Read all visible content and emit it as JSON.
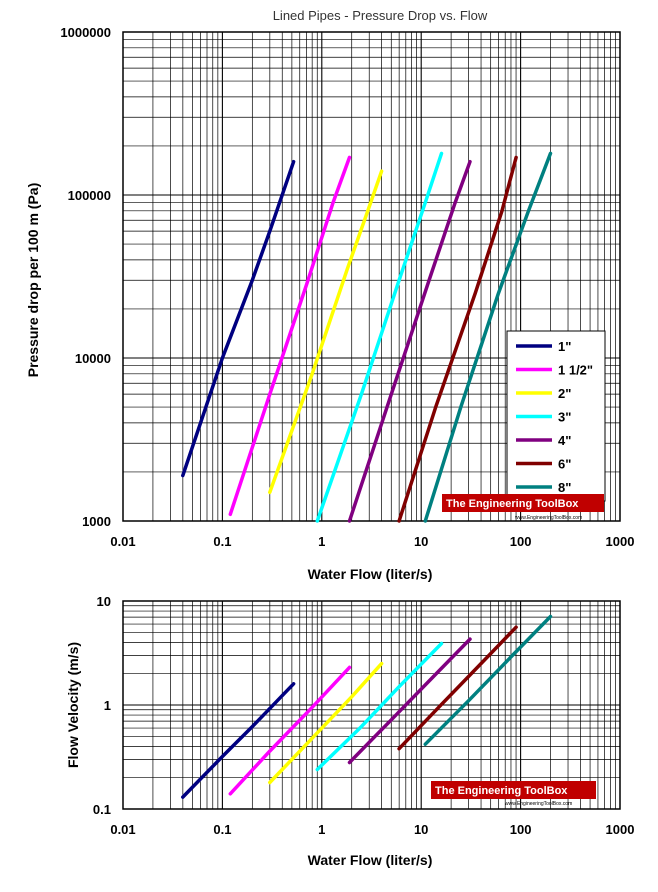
{
  "chart_data": [
    {
      "type": "line",
      "title": "Lined Pipes - Pressure Drop vs. Flow",
      "xlabel": "Water Flow (liter/s)",
      "ylabel": "Pressure drop per 100 m (Pa)",
      "xscale": "log",
      "yscale": "log",
      "xlim": [
        0.01,
        1000
      ],
      "ylim": [
        1000,
        1000000
      ],
      "grid": true,
      "legend_position": "bottom-right",
      "x_ticks": [
        {
          "v": 0.01,
          "label": "0.01"
        },
        {
          "v": 0.1,
          "label": "0.1"
        },
        {
          "v": 1,
          "label": "1"
        },
        {
          "v": 10,
          "label": "10"
        },
        {
          "v": 100,
          "label": "100"
        },
        {
          "v": 1000,
          "label": "1000"
        }
      ],
      "y_ticks": [
        {
          "v": 1000,
          "label": "1000"
        },
        {
          "v": 10000,
          "label": "10000"
        },
        {
          "v": 100000,
          "label": "100000"
        },
        {
          "v": 1000000,
          "label": "1000000"
        }
      ],
      "series": [
        {
          "name": "1\"",
          "color": "#000080",
          "points": [
            [
              0.04,
              1900
            ],
            [
              0.1,
              10000
            ],
            [
              0.2,
              30000
            ],
            [
              0.3,
              60000
            ],
            [
              0.52,
              160000
            ]
          ]
        },
        {
          "name": "1 1/2\"",
          "color": "#ff00ff",
          "points": [
            [
              0.12,
              1100
            ],
            [
              0.3,
              6000
            ],
            [
              0.7,
              28000
            ],
            [
              1.3,
              90000
            ],
            [
              1.9,
              170000
            ]
          ]
        },
        {
          "name": "2\"",
          "color": "#ffff00",
          "points": [
            [
              0.3,
              1500
            ],
            [
              0.8,
              8000
            ],
            [
              1.8,
              35000
            ],
            [
              2.9,
              80000
            ],
            [
              4.0,
              140000
            ]
          ]
        },
        {
          "name": "3\"",
          "color": "#00ffff",
          "points": [
            [
              0.9,
              1000
            ],
            [
              2.5,
              6000
            ],
            [
              6,
              30000
            ],
            [
              11,
              90000
            ],
            [
              16,
              180000
            ]
          ]
        },
        {
          "name": "4\"",
          "color": "#800080",
          "points": [
            [
              1.9,
              1000
            ],
            [
              5,
              6000
            ],
            [
              12,
              30000
            ],
            [
              22,
              90000
            ],
            [
              31,
              160000
            ]
          ]
        },
        {
          "name": "6\"",
          "color": "#800000",
          "points": [
            [
              6,
              1000
            ],
            [
              14,
              5000
            ],
            [
              35,
              25000
            ],
            [
              65,
              80000
            ],
            [
              90,
              170000
            ]
          ]
        },
        {
          "name": "8\"",
          "color": "#008080",
          "points": [
            [
              11,
              1000
            ],
            [
              25,
              5000
            ],
            [
              60,
              25000
            ],
            [
              120,
              80000
            ],
            [
              200,
              180000
            ]
          ]
        }
      ],
      "watermark": {
        "name": "The Engineering ToolBox",
        "url": "www.EngineeringToolBox.com"
      }
    },
    {
      "type": "line",
      "title": "",
      "xlabel": "Water Flow (liter/s)",
      "ylabel": "Flow Velocity (m/s)",
      "xscale": "log",
      "yscale": "log",
      "xlim": [
        0.01,
        1000
      ],
      "ylim": [
        0.1,
        10
      ],
      "grid": true,
      "x_ticks": [
        {
          "v": 0.01,
          "label": "0.01"
        },
        {
          "v": 0.1,
          "label": "0.1"
        },
        {
          "v": 1,
          "label": "1"
        },
        {
          "v": 10,
          "label": "10"
        },
        {
          "v": 100,
          "label": "100"
        },
        {
          "v": 1000,
          "label": "1000"
        }
      ],
      "y_ticks": [
        {
          "v": 0.1,
          "label": "0.1"
        },
        {
          "v": 1,
          "label": "1"
        },
        {
          "v": 10,
          "label": "10"
        }
      ],
      "series": [
        {
          "name": "1\"",
          "color": "#000080",
          "points": [
            [
              0.04,
              0.13
            ],
            [
              0.1,
              0.32
            ],
            [
              0.2,
              0.62
            ],
            [
              0.52,
              1.6
            ]
          ]
        },
        {
          "name": "1 1/2\"",
          "color": "#ff00ff",
          "points": [
            [
              0.12,
              0.14
            ],
            [
              0.3,
              0.36
            ],
            [
              0.8,
              0.95
            ],
            [
              1.9,
              2.3
            ]
          ]
        },
        {
          "name": "2\"",
          "color": "#ffff00",
          "points": [
            [
              0.3,
              0.18
            ],
            [
              0.8,
              0.48
            ],
            [
              2,
              1.2
            ],
            [
              4.0,
              2.5
            ]
          ]
        },
        {
          "name": "3\"",
          "color": "#00ffff",
          "points": [
            [
              0.9,
              0.24
            ],
            [
              2.5,
              0.62
            ],
            [
              6,
              1.5
            ],
            [
              16,
              3.9
            ]
          ]
        },
        {
          "name": "4\"",
          "color": "#800080",
          "points": [
            [
              1.9,
              0.28
            ],
            [
              5,
              0.72
            ],
            [
              12,
              1.7
            ],
            [
              31,
              4.3
            ]
          ]
        },
        {
          "name": "6\"",
          "color": "#800000",
          "points": [
            [
              6,
              0.38
            ],
            [
              15,
              0.95
            ],
            [
              40,
              2.5
            ],
            [
              90,
              5.6
            ]
          ]
        },
        {
          "name": "8\"",
          "color": "#008080",
          "points": [
            [
              11,
              0.42
            ],
            [
              30,
              1.1
            ],
            [
              80,
              2.9
            ],
            [
              200,
              7.1
            ]
          ]
        }
      ],
      "watermark": {
        "name": "The Engineering ToolBox",
        "url": "www.EngineeringToolBox.com"
      }
    }
  ],
  "colors": {
    "grid": "#000000",
    "watermark_bg": "#c00000",
    "watermark_text": "#ffffff"
  }
}
